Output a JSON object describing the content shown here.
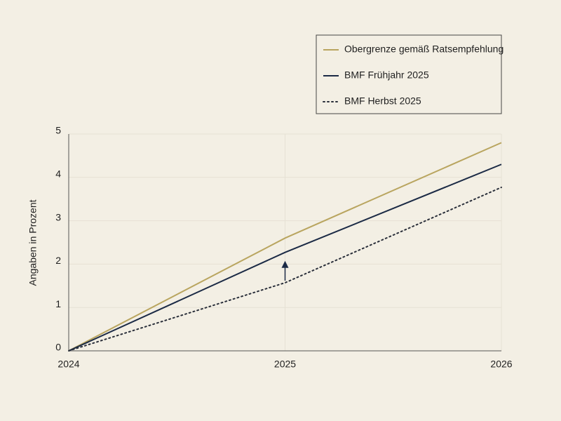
{
  "chart_data": {
    "type": "line",
    "y_label": "Angaben in Prozent",
    "x": [
      2024,
      2025,
      2026
    ],
    "xlim": [
      2024,
      2026
    ],
    "xticks": [
      2024,
      2025,
      2026
    ],
    "ylim": [
      0,
      5
    ],
    "yticks": [
      0,
      1,
      2,
      3,
      4,
      5
    ],
    "grid": true,
    "legend": "top-right",
    "series": [
      {
        "name": "Obergrenze gemäß Ratsempfehlung",
        "color": "#b9a55f",
        "style": "solid",
        "values": [
          0,
          2.6,
          4.8
        ]
      },
      {
        "name": "BMF Frühjahr 2025",
        "color": "#1b2a45",
        "style": "solid",
        "values": [
          0,
          2.27,
          4.3
        ]
      },
      {
        "name": "BMF Herbst 2025",
        "color": "#2a2f3a",
        "style": "dotted",
        "values": [
          0,
          1.57,
          3.77
        ]
      }
    ]
  }
}
